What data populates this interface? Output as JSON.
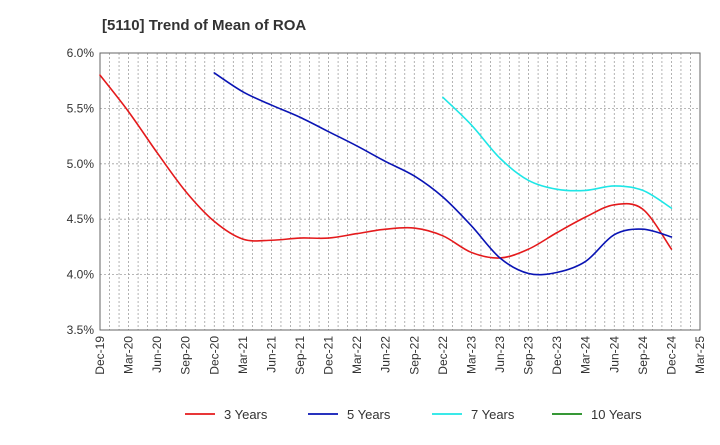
{
  "chart_data": {
    "type": "line",
    "title": "[5110]  Trend of Mean of ROA",
    "xlabel": "",
    "ylabel": "",
    "ylim": [
      3.5,
      6.0
    ],
    "yticks": [
      3.5,
      4.0,
      4.5,
      5.0,
      5.5,
      6.0
    ],
    "ytick_labels": [
      "3.5%",
      "4.0%",
      "4.5%",
      "5.0%",
      "5.5%",
      "6.0%"
    ],
    "x_ticks": [
      "Dec-19",
      "Mar-20",
      "Jun-20",
      "Sep-20",
      "Dec-20",
      "Mar-21",
      "Jun-21",
      "Sep-21",
      "Dec-21",
      "Mar-22",
      "Jun-22",
      "Sep-22",
      "Dec-22",
      "Mar-23",
      "Jun-23",
      "Sep-23",
      "Dec-23",
      "Mar-24",
      "Jun-24",
      "Sep-24",
      "Dec-24",
      "Mar-25"
    ],
    "grid": true,
    "legend_position": "bottom",
    "series": [
      {
        "name": "3 Years",
        "color": "#e41a1c",
        "start_index": 0,
        "values": [
          5.8,
          5.47,
          5.1,
          4.75,
          4.48,
          4.32,
          4.31,
          4.33,
          4.33,
          4.37,
          4.41,
          4.42,
          4.35,
          4.2,
          4.15,
          4.23,
          4.38,
          4.52,
          4.63,
          4.59,
          4.23
        ]
      },
      {
        "name": "5 Years",
        "color": "#0a14b4",
        "start_index": 4,
        "values": [
          5.82,
          5.65,
          5.53,
          5.42,
          5.29,
          5.16,
          5.02,
          4.89,
          4.7,
          4.44,
          4.15,
          4.01,
          4.02,
          4.12,
          4.36,
          4.41,
          4.34
        ]
      },
      {
        "name": "7 Years",
        "color": "#1ee6e6",
        "start_index": 12,
        "values": [
          5.6,
          5.35,
          5.05,
          4.85,
          4.77,
          4.76,
          4.8,
          4.76,
          4.6
        ]
      },
      {
        "name": "10 Years",
        "color": "#1a8a1a",
        "start_index": 0,
        "values": []
      }
    ]
  }
}
